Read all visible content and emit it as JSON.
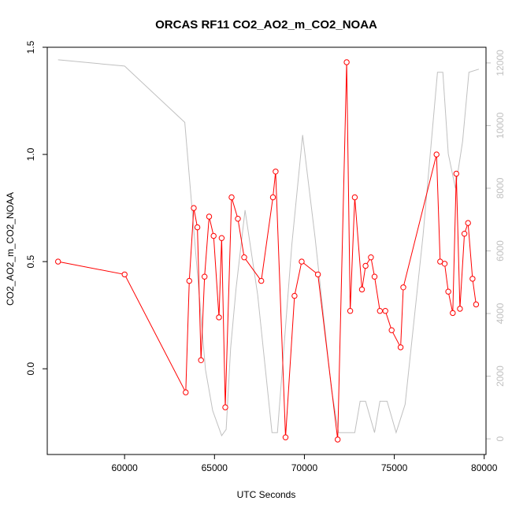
{
  "chart_data": {
    "type": "line",
    "title": "ORCAS RF11 CO2_AO2_m_CO2_NOAA",
    "xlabel": "UTC Seconds",
    "ylabel": "CO2_AO2_m_CO2_NOAA",
    "xlim": [
      55700,
      80100
    ],
    "ylim": [
      -0.4,
      1.5
    ],
    "y2lim": [
      -500,
      12500
    ],
    "x_ticks": [
      60000,
      65000,
      70000,
      75000,
      80000
    ],
    "y_ticks": [
      0.0,
      0.5,
      1.0,
      1.5
    ],
    "y_tick_labels": [
      "0.0",
      "0.5",
      "1.0",
      "1.5"
    ],
    "y2_ticks": [
      0,
      2000,
      4000,
      6000,
      8000,
      10000,
      12000
    ],
    "grid": false,
    "colors": {
      "co2": "#ff0000",
      "altitude": "#c0c0c0"
    },
    "series": [
      {
        "axis": "left",
        "markers": "open-circle",
        "x": [
          56300,
          60000,
          63400,
          63600,
          63850,
          64050,
          64250,
          64450,
          64700,
          64950,
          65250,
          65400,
          65600,
          65950,
          66300,
          66650,
          67600,
          68250,
          68400,
          68950,
          69450,
          69850,
          70750,
          71850,
          72350,
          72550,
          72800,
          73200,
          73400,
          73700,
          73900,
          74200,
          74500,
          74850,
          75350,
          75500,
          77350,
          77550,
          77800,
          78000,
          78250,
          78450,
          78650,
          78900,
          79100,
          79350,
          79550
        ],
        "y": [
          0.5,
          0.44,
          -0.11,
          0.41,
          0.75,
          0.66,
          0.04,
          0.43,
          0.71,
          0.62,
          0.24,
          0.61,
          -0.18,
          0.8,
          0.7,
          0.52,
          0.41,
          0.8,
          0.92,
          -0.32,
          0.34,
          0.5,
          0.44,
          -0.33,
          1.43,
          0.27,
          0.8,
          0.37,
          0.48,
          0.52,
          0.43,
          0.27,
          0.27,
          0.18,
          0.1,
          0.38,
          1.0,
          0.5,
          0.49,
          0.36,
          0.26,
          0.91,
          0.28,
          0.63,
          0.68,
          0.42,
          0.3
        ]
      },
      {
        "axis": "right",
        "markers": "none",
        "x": [
          56300,
          60000,
          63350,
          64500,
          64900,
          65400,
          65650,
          65900,
          66200,
          66700,
          67400,
          68200,
          68500,
          69300,
          69900,
          70600,
          71500,
          71900,
          72300,
          72800,
          73100,
          73400,
          73900,
          74200,
          74600,
          75100,
          75600,
          76600,
          77400,
          77700,
          78000,
          78400,
          78800,
          79150,
          79700
        ],
        "y": [
          12100,
          11900,
          10100,
          2200,
          900,
          100,
          300,
          2900,
          4800,
          7300,
          4600,
          200,
          200,
          6200,
          9700,
          6400,
          1600,
          200,
          200,
          200,
          1200,
          1200,
          200,
          1200,
          1200,
          200,
          1100,
          6500,
          11700,
          11700,
          9100,
          8000,
          9500,
          11700,
          11800
        ]
      }
    ]
  }
}
